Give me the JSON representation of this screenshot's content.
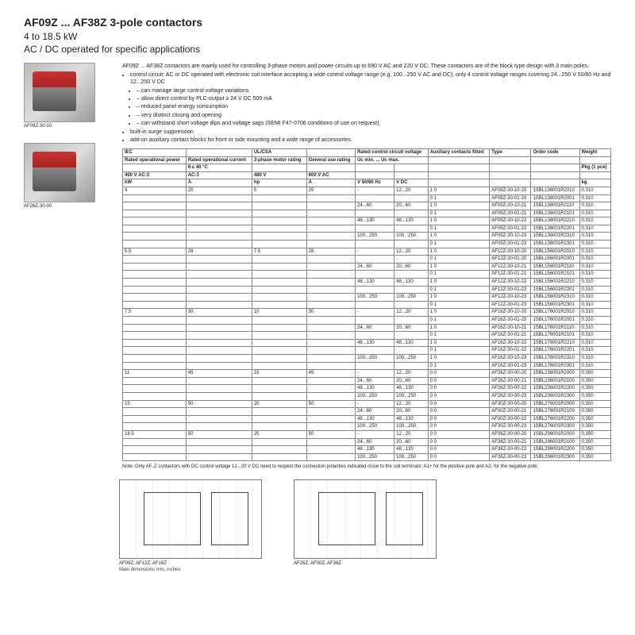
{
  "header": {
    "title": "AF09Z ... AF38Z  3-pole contactors",
    "sub1": "4 to 18.5 kW",
    "sub2": "AC / DC operated for specific applications"
  },
  "products": [
    {
      "caption": "AF09Z-30-10"
    },
    {
      "caption": "AF26Z-30-00"
    }
  ],
  "intro": {
    "p1": "AF09Z ... AF38Z contactors are mainly used for controlling 3-phase motors and power circuits up to 690 V AC and 220 V DC. These contactors are of the block type design with 3 main poles.",
    "b1": "control circuit: AC or DC operated with electronic coil interface accepting a wide control voltage range (e.g. 100...250 V AC and DC), only 4 control voltage ranges covering 24...250 V 50/60 Hz and 12...250 V DC",
    "s1": "can manage large control voltage variations",
    "s2": "allow direct control by PLC-output ≥ 24 V DC 500 mA",
    "s3": "reduced panel energy consumption",
    "s4": "very distinct closing and opening",
    "s5": "can withstand short voltage dips and voltage sags (SEMI F47-0706 conditions of use on request).",
    "b2": "built-in surge suppression",
    "b3": "add-on auxiliary contact blocks for front or side mounting and a wide range of accessories."
  },
  "thead": {
    "c1a": "IEC",
    "c1b": "Rated operational power",
    "c1c": " ",
    "c1d": "400 V AC-3",
    "c1e": "kW",
    "c2a": " ",
    "c2b": "Rated operational current",
    "c2c": "θ ≤ 40 °C",
    "c2d": "AC-1",
    "c2e": "A",
    "c3a": "UL/CSA",
    "c3b": "3-phase motor rating",
    "c3c": " ",
    "c3d": "480 V",
    "c3e": "hp",
    "c4a": " ",
    "c4b": "General use rating",
    "c4c": " ",
    "c4d": "600 V AC",
    "c4e": "A",
    "c5a": "Rated control circuit voltage",
    "c5b": "Uc min. ... Uc max.",
    "c5c": " ",
    "c5d": " ",
    "c5e": "V 50/60 Hz",
    "c6a": " ",
    "c6b": " ",
    "c6c": " ",
    "c6d": " ",
    "c6e": "V DC",
    "c7a": "Auxiliary contacts fitted",
    "c7b": " ",
    "c7c": " ",
    "c7d": " ",
    "c7e": " ",
    "c8a": "Type",
    "c8b": " ",
    "c8c": " ",
    "c8d": " ",
    "c8e": " ",
    "c9a": "Order code",
    "c9b": " ",
    "c9c": " ",
    "c9d": " ",
    "c9e": " ",
    "c10a": "Weight",
    "c10b": " ",
    "c10c": "Pkg (1 pce)",
    "c10d": " ",
    "c10e": "kg"
  },
  "rows": [
    [
      "4",
      "25",
      "5",
      "25",
      "-",
      "12...20",
      "1 0",
      "AF09Z-30-10-20",
      "1SBL136001R2010",
      "0.310"
    ],
    [
      "",
      "",
      "",
      "",
      "",
      "",
      "0 1",
      "AF09Z-30-01-20",
      "1SBL136001R2001",
      "0.310"
    ],
    [
      "",
      "",
      "",
      "",
      "24...60",
      "20...60",
      "1 0",
      "AF09Z-30-10-21",
      "1SBL136001R2110",
      "0.310"
    ],
    [
      "",
      "",
      "",
      "",
      "",
      "",
      "0 1",
      "AF09Z-30-01-21",
      "1SBL136001R2101",
      "0.310"
    ],
    [
      "",
      "",
      "",
      "",
      "48...130",
      "48...130",
      "1 0",
      "AF09Z-30-10-22",
      "1SBL136001R2210",
      "0.310"
    ],
    [
      "",
      "",
      "",
      "",
      "",
      "",
      "0 1",
      "AF09Z-30-01-22",
      "1SBL136001R2201",
      "0.310"
    ],
    [
      "",
      "",
      "",
      "",
      "100...250",
      "100...250",
      "1 0",
      "AF09Z-30-10-23",
      "1SBL136001R2310",
      "0.310"
    ],
    [
      "",
      "",
      "",
      "",
      "",
      "",
      "0 1",
      "AF09Z-30-01-23",
      "1SBL136001R2301",
      "0.310"
    ],
    [
      "5.5",
      "28",
      "7.5",
      "28",
      "-",
      "12...20",
      "1 0",
      "AF12Z-30-10-20",
      "1SBL156001R2010",
      "0.310"
    ],
    [
      "",
      "",
      "",
      "",
      "",
      "",
      "0 1",
      "AF12Z-30-01-20",
      "1SBL156001R2001",
      "0.310"
    ],
    [
      "",
      "",
      "",
      "",
      "24...60",
      "20...60",
      "1 0",
      "AF12Z-30-10-21",
      "1SBL156001R2110",
      "0.310"
    ],
    [
      "",
      "",
      "",
      "",
      "",
      "",
      "0 1",
      "AF12Z-30-01-21",
      "1SBL156001R2101",
      "0.310"
    ],
    [
      "",
      "",
      "",
      "",
      "48...130",
      "48...130",
      "1 0",
      "AF12Z-30-10-22",
      "1SBL156001R2210",
      "0.310"
    ],
    [
      "",
      "",
      "",
      "",
      "",
      "",
      "0 1",
      "AF12Z-30-01-22",
      "1SBL156001R2201",
      "0.310"
    ],
    [
      "",
      "",
      "",
      "",
      "100...250",
      "100...250",
      "1 0",
      "AF12Z-30-10-23",
      "1SBL156001R2310",
      "0.310"
    ],
    [
      "",
      "",
      "",
      "",
      "",
      "",
      "0 1",
      "AF12Z-30-01-23",
      "1SBL156001R2301",
      "0.310"
    ],
    [
      "7.5",
      "30",
      "10",
      "30",
      "-",
      "12...20",
      "1 0",
      "AF16Z-30-10-20",
      "1SBL176001R2010",
      "0.310"
    ],
    [
      "",
      "",
      "",
      "",
      "",
      "",
      "0 1",
      "AF16Z-30-01-20",
      "1SBL176001R2001",
      "0.310"
    ],
    [
      "",
      "",
      "",
      "",
      "24...60",
      "20...60",
      "1 0",
      "AF16Z-30-10-21",
      "1SBL176001R2110",
      "0.310"
    ],
    [
      "",
      "",
      "",
      "",
      "",
      "",
      "0 1",
      "AF16Z-30-01-21",
      "1SBL176001R2101",
      "0.310"
    ],
    [
      "",
      "",
      "",
      "",
      "48...130",
      "48...130",
      "1 0",
      "AF16Z-30-10-22",
      "1SBL176001R2210",
      "0.310"
    ],
    [
      "",
      "",
      "",
      "",
      "",
      "",
      "0 1",
      "AF16Z-30-01-22",
      "1SBL176001R2201",
      "0.310"
    ],
    [
      "",
      "",
      "",
      "",
      "100...250",
      "100...250",
      "1 0",
      "AF16Z-30-10-23",
      "1SBL176001R2310",
      "0.310"
    ],
    [
      "",
      "",
      "",
      "",
      "",
      "",
      "0 1",
      "AF16Z-30-01-23",
      "1SBL176001R2301",
      "0.310"
    ],
    [
      "11",
      "45",
      "15",
      "45",
      "-",
      "12...20",
      "0 0",
      "AF26Z-30-00-20",
      "1SBL236001R2000",
      "0.350"
    ],
    [
      "",
      "",
      "",
      "",
      "24...60",
      "20...60",
      "0 0",
      "AF26Z-30-00-21",
      "1SBL236001R2100",
      "0.350"
    ],
    [
      "",
      "",
      "",
      "",
      "48...130",
      "48...130",
      "0 0",
      "AF26Z-30-00-22",
      "1SBL236001R2200",
      "0.350"
    ],
    [
      "",
      "",
      "",
      "",
      "100...250",
      "100...250",
      "0 0",
      "AF26Z-30-00-23",
      "1SBL236001R2300",
      "0.350"
    ],
    [
      "15",
      "50",
      "20",
      "50",
      "-",
      "12...20",
      "0 0",
      "AF30Z-30-00-20",
      "1SBL276001R2000",
      "0.350"
    ],
    [
      "",
      "",
      "",
      "",
      "24...60",
      "20...60",
      "0 0",
      "AF30Z-30-00-21",
      "1SBL276001R2100",
      "0.350"
    ],
    [
      "",
      "",
      "",
      "",
      "48...130",
      "48...130",
      "0 0",
      "AF30Z-30-00-22",
      "1SBL276001R2200",
      "0.350"
    ],
    [
      "",
      "",
      "",
      "",
      "100...250",
      "100...250",
      "0 0",
      "AF30Z-30-00-23",
      "1SBL276001R2300",
      "0.350"
    ],
    [
      "18.5",
      "50",
      "25",
      "50",
      "-",
      "12...20",
      "0 0",
      "AF38Z-30-00-20",
      "1SBL296001R2000",
      "0.350"
    ],
    [
      "",
      "",
      "",
      "",
      "24...60",
      "20...60",
      "0 0",
      "AF38Z-30-00-21",
      "1SBL296001R2100",
      "0.350"
    ],
    [
      "",
      "",
      "",
      "",
      "48...130",
      "48...130",
      "0 0",
      "AF38Z-30-00-22",
      "1SBL296001R2200",
      "0.350"
    ],
    [
      "",
      "",
      "",
      "",
      "100...250",
      "100...250",
      "0 0",
      "AF38Z-30-00-23",
      "1SBL296001R2300",
      "0.350"
    ]
  ],
  "note": "Note: Only AF..Z contactors with DC control voltage 12...20 V DC need to respect the connection polarities indicated close to the coil terminals: A1+ for the positive pole and A2- for the negative pole.",
  "drawings": {
    "d1": "AF09Z, AF12Z, AF16Z",
    "d2": "AF26Z, AF30Z, AF38Z",
    "dim": "Main dimensions mm, inches"
  }
}
